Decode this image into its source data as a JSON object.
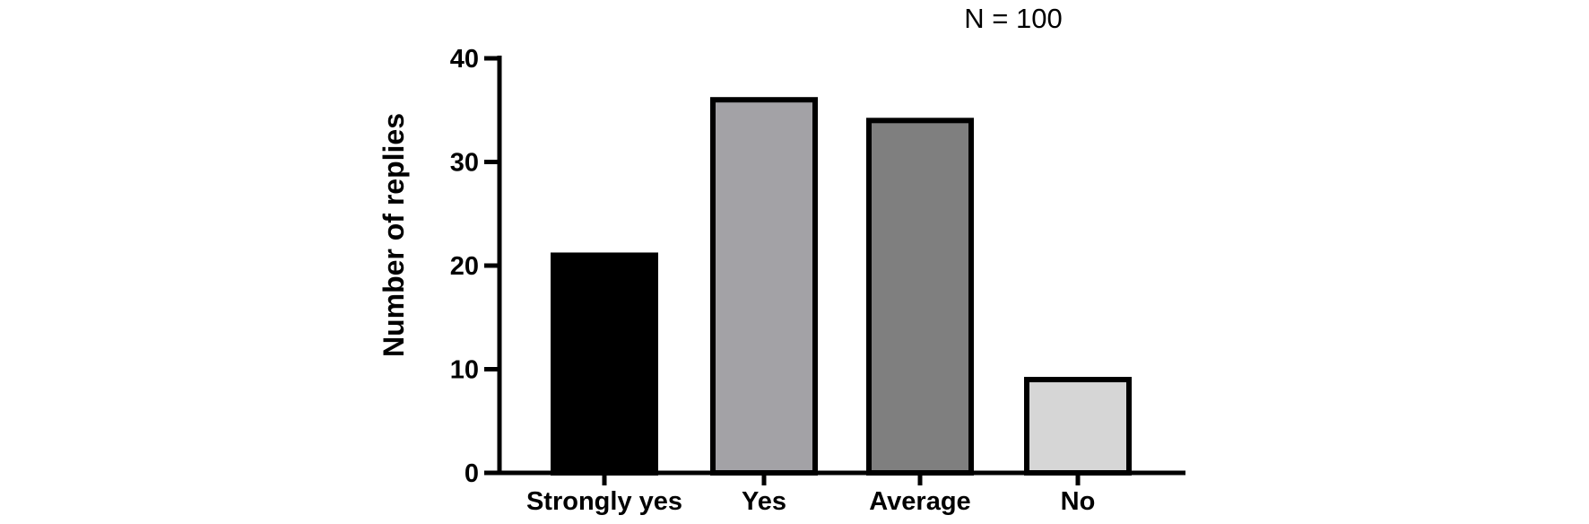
{
  "chart_data": {
    "type": "bar",
    "title": "",
    "annotation": "N = 100",
    "xlabel": "",
    "ylabel": "Number of replies",
    "categories": [
      "Strongly yes",
      "Yes",
      "Average",
      "No"
    ],
    "values": [
      21,
      36,
      34,
      9
    ],
    "bar_colors": [
      "#000000",
      "#a3a2a6",
      "#7f7f7f",
      "#d6d6d6"
    ],
    "ylim": [
      0,
      40
    ],
    "yticks": [
      0,
      10,
      20,
      30,
      40
    ],
    "grid": false,
    "legend": "none"
  }
}
